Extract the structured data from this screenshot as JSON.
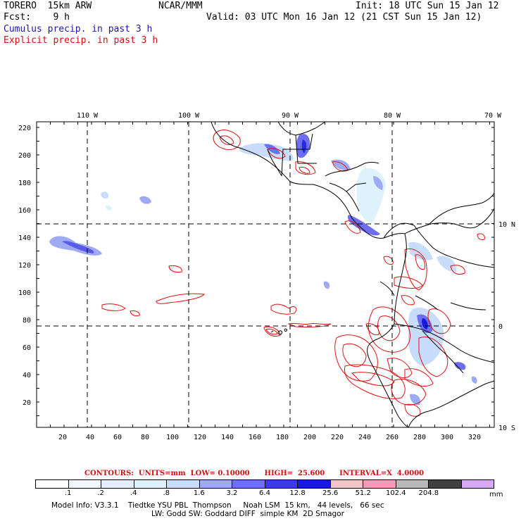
{
  "header": {
    "model": "TORERO  15km ARW",
    "org": "NCAR/MMM",
    "init": "Init: 18 UTC Sun 15 Jan 12",
    "fcst": "Fcst:    9 h",
    "valid": "Valid: 03 UTC Mon 16 Jan 12 (21 CST Sun 15 Jan 12)",
    "cumulus_label": "Cumulus precip. in past 3 h",
    "explicit_label": "Explicit precip. in past 3 h"
  },
  "map": {
    "top_lon_labels": [
      "110 W",
      "100 W",
      "90 W",
      "80 W",
      "70 W"
    ],
    "right_lat_labels": [
      "10 N",
      "0",
      "10 S"
    ],
    "left_ticks": [
      "220",
      "200",
      "180",
      "160",
      "140",
      "120",
      "100",
      "80",
      "60",
      "40",
      "20"
    ],
    "bottom_ticks": [
      "20",
      "40",
      "60",
      "80",
      "100",
      "120",
      "140",
      "160",
      "180",
      "200",
      "220",
      "240",
      "260",
      "280",
      "300",
      "320"
    ],
    "colors": {
      "coast": "#000000",
      "explicit_contour": "#e01010",
      "grid": "#000000"
    }
  },
  "contours_text": "CONTOURS:  UNITS=mm  LOW= 0.10000      HIGH=  25.600      INTERVAL=X  4.0000",
  "colorbar": {
    "colors": [
      "#ffffff",
      "#f3f7ff",
      "#e6eefe",
      "#ddf2fb",
      "#c8dcfb",
      "#9eaaf3",
      "#6d6ef0",
      "#3b3ae6",
      "#1818e0",
      "#f5c4c8",
      "#f29ab8",
      "#b8b8b8",
      "#404040",
      "#d8a8f4"
    ],
    "labels": [
      ".1",
      ".2",
      ".4",
      ".8",
      "1.6",
      "3.2",
      "6.4",
      "12.8",
      "25.6",
      "51.2",
      "102.4",
      "204.8"
    ],
    "units": "mm"
  },
  "footer": {
    "line1": "Model Info: V3.3.1    Tiedtke YSU PBL  Thompson     Noah LSM  15 km,   44 levels,   66 sec",
    "line2": "LW: Godd SW: Goddard DIFF  simple KM  2D Smagor"
  }
}
